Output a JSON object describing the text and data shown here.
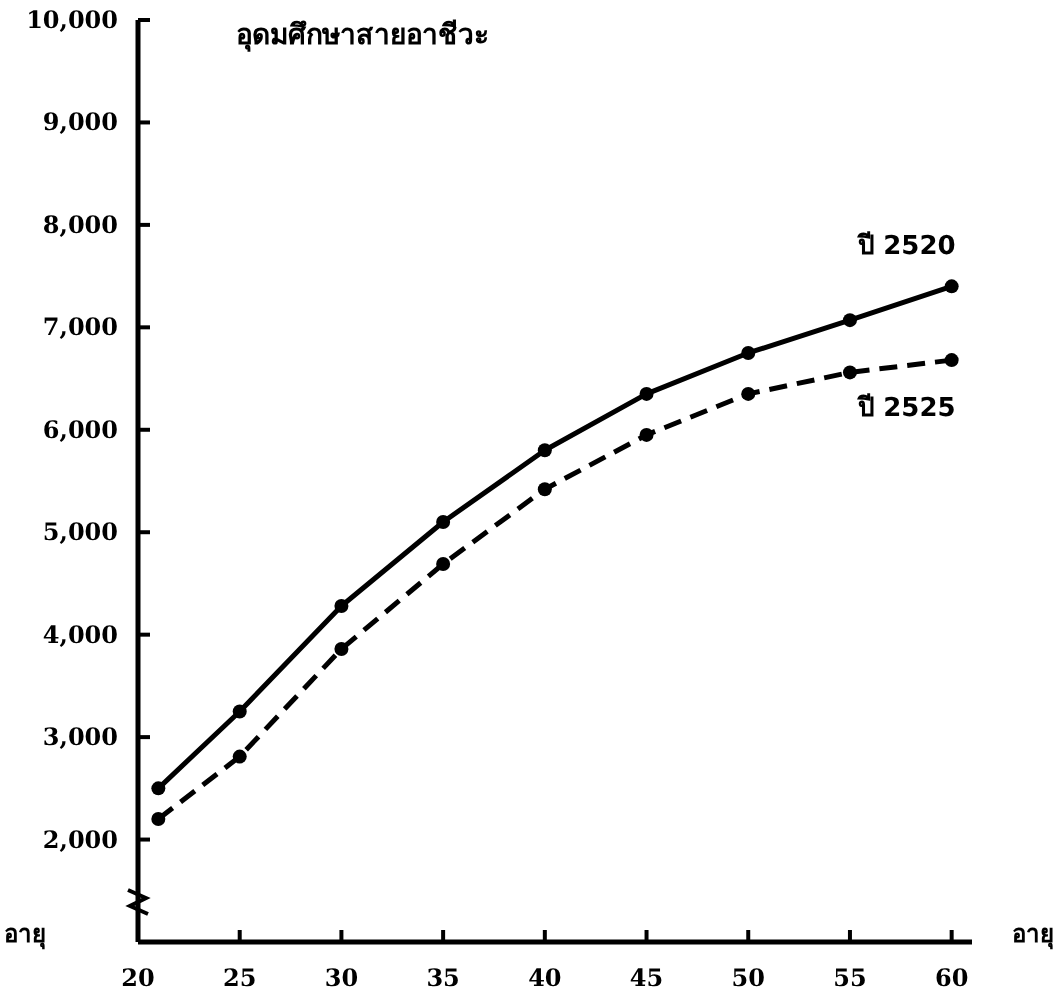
{
  "chart_data": {
    "type": "line",
    "title": "อุดมศึกษาสายอาชีวะ",
    "xlabel": "อายุ",
    "annotations": [
      "อายุ"
    ],
    "x": [
      21,
      25,
      30,
      35,
      40,
      45,
      50,
      55,
      60
    ],
    "series": [
      {
        "name": "ปี 2520",
        "color": "#000000",
        "line_style": "solid",
        "values": [
          2500,
          3250,
          4280,
          5100,
          5800,
          6350,
          6750,
          7070,
          7400
        ]
      },
      {
        "name": "ปี 2525",
        "color": "#000000",
        "line_style": "dashed",
        "values": [
          2200,
          2810,
          3860,
          4690,
          5420,
          5950,
          6350,
          6560,
          6680
        ]
      }
    ],
    "xlim": [
      20,
      61
    ],
    "xticks": [
      20,
      25,
      30,
      35,
      40,
      45,
      50,
      55,
      60
    ],
    "ylim": [
      1000,
      10000
    ],
    "yticks": [
      {
        "value": 2000,
        "label": "2,000"
      },
      {
        "value": 3000,
        "label": "3,000"
      },
      {
        "value": 4000,
        "label": "4,000"
      },
      {
        "value": 5000,
        "label": "5,000"
      },
      {
        "value": 6000,
        "label": "6,000"
      },
      {
        "value": 7000,
        "label": "7,000"
      },
      {
        "value": 8000,
        "label": "8,000"
      },
      {
        "value": 9000,
        "label": "9,000"
      },
      {
        "value": 10000,
        "label": "10,000"
      }
    ],
    "marker": "circle",
    "grid": false
  }
}
